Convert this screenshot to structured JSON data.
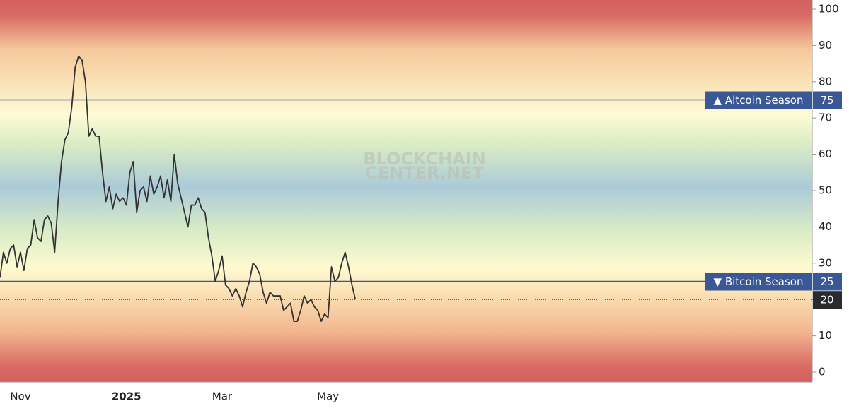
{
  "chart_data": {
    "type": "line",
    "watermark": [
      "BLOCKCHAIN",
      "CENTER.NET"
    ],
    "categories": [
      null,
      null,
      null,
      null,
      null,
      null,
      "Nov",
      null,
      null,
      null,
      null,
      null,
      null,
      null,
      null,
      null,
      null,
      null,
      null,
      null,
      null,
      null,
      null,
      null,
      null,
      null,
      null,
      null,
      null,
      null,
      null,
      null,
      null,
      null,
      null,
      null,
      null,
      "2025",
      null,
      null,
      null,
      null,
      null,
      null,
      null,
      null,
      null,
      null,
      null,
      null,
      null,
      null,
      null,
      null,
      null,
      null,
      null,
      null,
      null,
      null,
      null,
      null,
      null,
      null,
      null,
      "Mar",
      null,
      null,
      null,
      null,
      null,
      null,
      null,
      null,
      null,
      null,
      null,
      null,
      null,
      null,
      null,
      null,
      null,
      null,
      null,
      null,
      null,
      null,
      null,
      null,
      null,
      null,
      null,
      null,
      null,
      null,
      "May",
      null,
      null,
      null,
      null,
      null,
      null,
      null,
      null
    ],
    "values": [
      26,
      33,
      30,
      34,
      35,
      29,
      33,
      28,
      34,
      35,
      42,
      37,
      36,
      42,
      43,
      41,
      33,
      47,
      58,
      64,
      66,
      73,
      84,
      87,
      86,
      80,
      65,
      67,
      65,
      65,
      55,
      47,
      51,
      45,
      49,
      47,
      48,
      46,
      55,
      58,
      44,
      50,
      51,
      47,
      54,
      49,
      51,
      54,
      48,
      53,
      47,
      60,
      52,
      48,
      44,
      40,
      46,
      46,
      48,
      45,
      44,
      37,
      32,
      25,
      28,
      32,
      24,
      23,
      21,
      23,
      21,
      18,
      22,
      25,
      30,
      29,
      27,
      22,
      19,
      22,
      21,
      21,
      21,
      17,
      18,
      19,
      14,
      14,
      17,
      21,
      19,
      20,
      18,
      17,
      14,
      16,
      15,
      29,
      25,
      26,
      30,
      33,
      29,
      24,
      20
    ],
    "color": "#333333",
    "ylim": [
      0,
      100
    ],
    "yticks": [
      0,
      10,
      20,
      30,
      40,
      50,
      60,
      70,
      80,
      90,
      100
    ],
    "reference_lines": [
      {
        "value": 75,
        "label": "▲ Altcoin Season",
        "color": "#3a5796"
      },
      {
        "value": 25,
        "label": "▼ Bitcoin Season",
        "color": "#3a5796"
      }
    ]
  }
}
